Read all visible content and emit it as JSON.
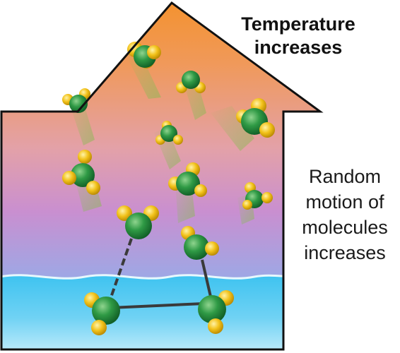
{
  "labels": {
    "top": [
      "Temperature",
      "increases"
    ],
    "right": [
      "Random",
      "motion of",
      "molecules",
      "increases"
    ]
  },
  "colors": {
    "sky_top": "#f4922e",
    "sky_mid": "#c98fd0",
    "sky_low": "#7fb3ea",
    "water_top": "#4cc6ef",
    "water_bottom": "#b8e9fb",
    "wave_line": "#d8f3fc",
    "oxygen": "#2f9a45",
    "hydrogen": "#f2c21a",
    "hydrogen_bond": "#444444",
    "outline": "#111111"
  }
}
